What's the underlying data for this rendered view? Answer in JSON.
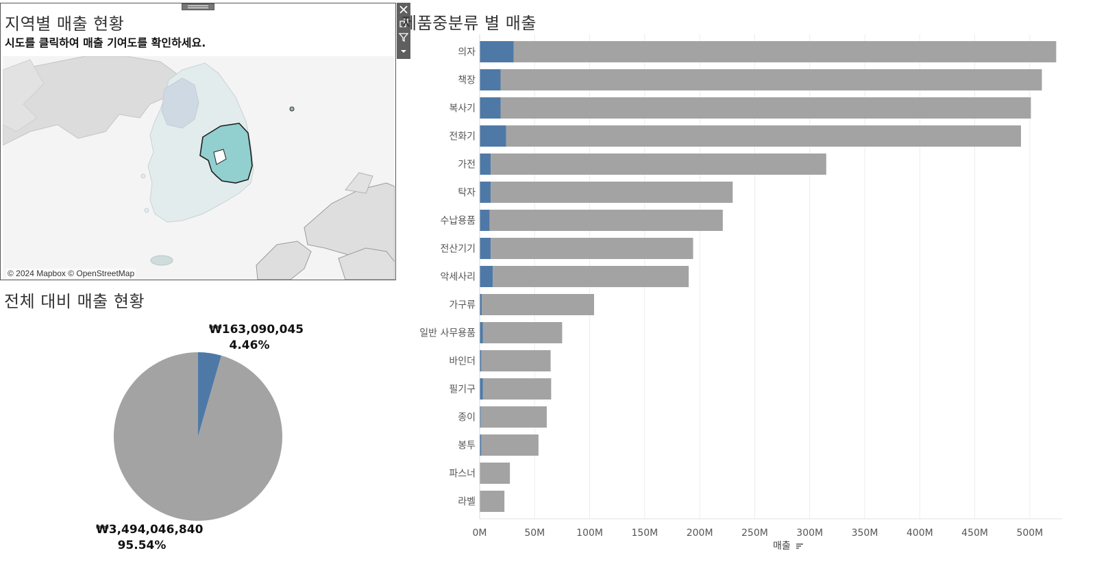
{
  "map_panel": {
    "title": "지역별 매출 현황",
    "subtitle": "시도를 클릭하여 매출 기여도를 확인하세요.",
    "attribution": "© 2024 Mapbox © OpenStreetMap",
    "selected_region_color": "#92cfcf",
    "land_color": "#e3ecec",
    "toolbar": [
      "close-icon",
      "popout-icon",
      "filter-icon",
      "dropdown-icon"
    ]
  },
  "pie_panel": {
    "title": "전체 대비 매출 현황",
    "selected": {
      "amount": "₩163,090,045",
      "percent": "4.46%",
      "share": 0.0446,
      "color": "#4e79a7"
    },
    "rest": {
      "amount": "₩3,494,046,840",
      "percent": "95.54%",
      "share": 0.9554,
      "color": "#a3a3a3"
    }
  },
  "bar_panel": {
    "title": "제품중분류 별 매출",
    "xlabel": "매출"
  },
  "chart_data": {
    "type": "bar",
    "orientation": "horizontal",
    "stacked": true,
    "categories": [
      "의자",
      "책장",
      "복사기",
      "전화기",
      "가전",
      "탁자",
      "수납용품",
      "전산기기",
      "악세사리",
      "가구류",
      "일반 사무용품",
      "바인더",
      "필기구",
      "종이",
      "봉투",
      "파스너",
      "라벨"
    ],
    "series": [
      {
        "color": "#4e79a7",
        "values": [
          31,
          19,
          19,
          24,
          10,
          10,
          9,
          10,
          12,
          2,
          3,
          1.5,
          3,
          1,
          1.5,
          0.5,
          0.5
        ]
      },
      {
        "color": "#a3a3a3",
        "values": [
          493,
          492,
          482,
          468,
          305,
          220,
          212,
          184,
          178,
          102,
          72,
          63,
          62,
          60,
          52,
          27,
          22
        ]
      }
    ],
    "xticks": [
      "0M",
      "50M",
      "100M",
      "150M",
      "200M",
      "250M",
      "300M",
      "350M",
      "400M",
      "450M",
      "500M"
    ],
    "xlim": [
      0,
      525
    ],
    "grid": true
  }
}
